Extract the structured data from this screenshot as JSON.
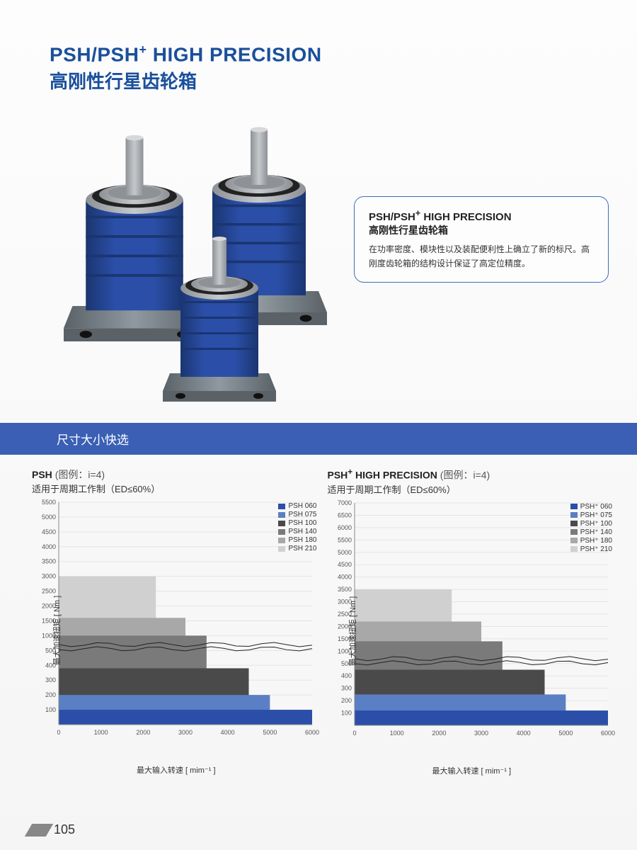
{
  "header": {
    "title_en_pre": "PSH/PSH",
    "title_en_post": " HIGH PRECISION",
    "sup": "+",
    "title_cn": "高刚性行星齿轮箱"
  },
  "info": {
    "title_en_pre": "PSH/PSH",
    "title_en_sup": "+",
    "title_en_post": " HIGH PRECISION",
    "title_cn": "高刚性行星齿轮箱",
    "desc": "在功率密度、模块性以及装配便利性上确立了新的标尺。高刚度齿轮箱的结构设计保证了高定位精度。"
  },
  "section_title": "尺寸大小快选",
  "page_number": "105",
  "gearbox_colors": {
    "body": "#2b4fa8",
    "body_dark": "#1a3570",
    "base": "#5a6268",
    "base_light": "#9099a0",
    "shaft": "#d8d8d8",
    "cap": "#c5c9cc",
    "ring": "#8e9296"
  },
  "chart_left": {
    "title_strong": "PSH",
    "title_light": "(图例：i=4)",
    "subtitle": "适用于周期工作制（ED≤60%）",
    "ylabel": "最大加速扭矩 [ Nm ]",
    "xlabel": "最大输入转速 [ mim⁻¹ ]",
    "x_ticks": [
      0,
      1000,
      2000,
      3000,
      4000,
      5000,
      6000
    ],
    "y_ticks": [
      100,
      200,
      300,
      400,
      500,
      1000,
      1500,
      2000,
      2500,
      3000,
      3500,
      4000,
      4500,
      5000,
      5500
    ],
    "xlim": [
      0,
      6000
    ],
    "bars": [
      {
        "name": "PSH 060",
        "color": "#2b4fa8",
        "x_end": 6000,
        "y_val": 100
      },
      {
        "name": "PSH 075",
        "color": "#5a7fc4",
        "x_end": 5000,
        "y_val": 200
      },
      {
        "name": "PSH 100",
        "color": "#4a4a4a",
        "x_end": 4500,
        "y_val": 380
      },
      {
        "name": "PSH 140",
        "color": "#7a7a7a",
        "x_end": 3500,
        "y_val": 1000
      },
      {
        "name": "PSH 180",
        "color": "#a8a8a8",
        "x_end": 3000,
        "y_val": 1600
      },
      {
        "name": "PSH 210",
        "color": "#d0d0d0",
        "x_end": 2300,
        "y_val": 3000
      }
    ],
    "break_y": 700,
    "grid_color": "#e5e5e5",
    "bg": "#f7f7f7"
  },
  "chart_right": {
    "title_strong_pre": "PSH",
    "title_strong_sup": "+",
    "title_strong_post": " HIGH PRECISION",
    "title_light": "(图例：i=4)",
    "subtitle": "适用于周期工作制（ED≤60%）",
    "ylabel": "最大加速扭矩 [ Nm ]",
    "xlabel": "最大输入转速 [ mim⁻¹ ]",
    "x_ticks": [
      0,
      1000,
      2000,
      3000,
      4000,
      5000,
      6000
    ],
    "y_ticks": [
      100,
      200,
      300,
      400,
      500,
      1000,
      1500,
      2000,
      2500,
      3000,
      3500,
      4000,
      4500,
      5000,
      5500,
      6000,
      6500,
      7000
    ],
    "xlim": [
      0,
      6000
    ],
    "bars": [
      {
        "name": "PSH⁺ 060",
        "color": "#2b4fa8",
        "x_end": 6000,
        "y_val": 120
      },
      {
        "name": "PSH⁺ 075",
        "color": "#5a7fc4",
        "x_end": 5000,
        "y_val": 250
      },
      {
        "name": "PSH⁺ 100",
        "color": "#4a4a4a",
        "x_end": 4500,
        "y_val": 450
      },
      {
        "name": "PSH⁺ 140",
        "color": "#7a7a7a",
        "x_end": 3500,
        "y_val": 1400
      },
      {
        "name": "PSH⁺ 180",
        "color": "#a8a8a8",
        "x_end": 3000,
        "y_val": 2200
      },
      {
        "name": "PSH⁺ 210",
        "color": "#d0d0d0",
        "x_end": 2300,
        "y_val": 3500
      }
    ],
    "break_y": 700,
    "grid_color": "#e5e5e5",
    "bg": "#f7f7f7"
  }
}
